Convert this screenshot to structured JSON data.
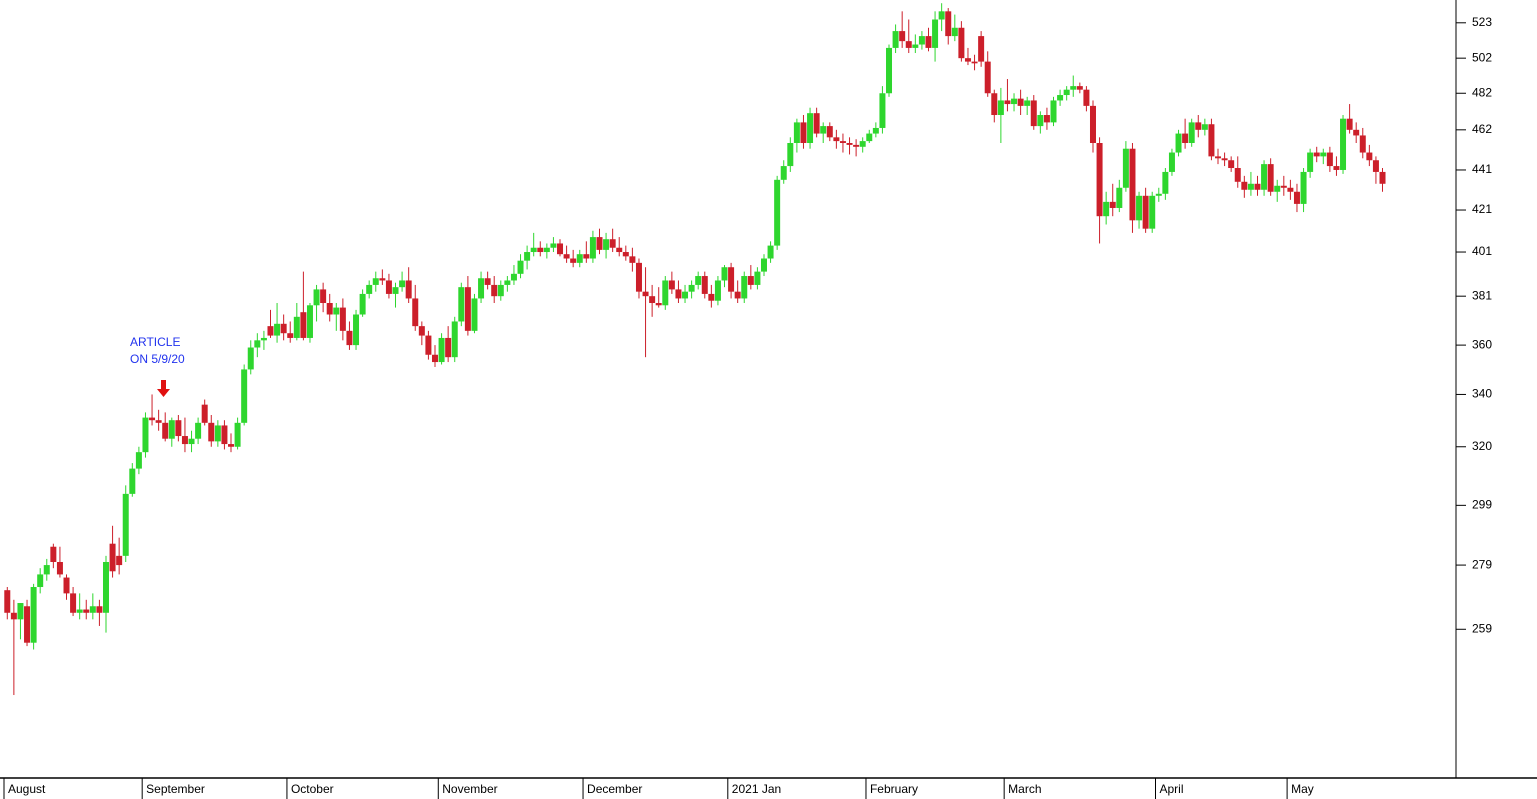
{
  "chart_data": {
    "type": "candlestick",
    "categories": [
      "August",
      null,
      null,
      null,
      null,
      null,
      null,
      null,
      null,
      null,
      null,
      null,
      null,
      null,
      null,
      null,
      null,
      null,
      null,
      null,
      null,
      "September",
      null,
      null,
      null,
      null,
      null,
      null,
      null,
      null,
      null,
      null,
      null,
      null,
      null,
      null,
      null,
      null,
      null,
      null,
      null,
      null,
      null,
      "October",
      null,
      null,
      null,
      null,
      null,
      null,
      null,
      null,
      null,
      null,
      null,
      null,
      null,
      null,
      null,
      null,
      null,
      null,
      null,
      null,
      null,
      null,
      "November",
      null,
      null,
      null,
      null,
      null,
      null,
      null,
      null,
      null,
      null,
      null,
      null,
      null,
      null,
      null,
      null,
      null,
      null,
      null,
      null,
      null,
      "December",
      null,
      null,
      null,
      null,
      null,
      null,
      null,
      null,
      null,
      null,
      null,
      null,
      null,
      null,
      null,
      null,
      null,
      null,
      null,
      null,
      null,
      "2021 Jan",
      null,
      null,
      null,
      null,
      null,
      null,
      null,
      null,
      null,
      null,
      null,
      null,
      null,
      null,
      null,
      null,
      null,
      null,
      null,
      null,
      "February",
      null,
      null,
      null,
      null,
      null,
      null,
      null,
      null,
      null,
      null,
      null,
      null,
      null,
      null,
      null,
      null,
      null,
      null,
      null,
      null,
      "March",
      null,
      null,
      null,
      null,
      null,
      null,
      null,
      null,
      null,
      null,
      null,
      null,
      null,
      null,
      null,
      null,
      null,
      null,
      null,
      null,
      null,
      null,
      "April",
      null,
      null,
      null,
      null,
      null,
      null,
      null,
      null,
      null,
      null,
      null,
      null,
      null,
      null,
      null,
      null,
      null,
      null,
      null,
      "May",
      null,
      null,
      null,
      null,
      null,
      null,
      null,
      null,
      null,
      null,
      null,
      null,
      null,
      null
    ],
    "ohlc": [
      [
        271,
        272,
        262,
        264
      ],
      [
        264,
        268,
        240,
        262
      ],
      [
        262,
        267,
        256,
        267
      ],
      [
        266,
        268,
        254,
        255
      ],
      [
        255,
        273,
        253,
        272
      ],
      [
        272,
        278,
        270,
        276
      ],
      [
        276,
        281,
        274,
        279
      ],
      [
        285,
        286,
        278,
        280
      ],
      [
        280,
        285,
        275,
        276
      ],
      [
        275,
        276,
        268,
        270
      ],
      [
        270,
        272,
        263,
        264
      ],
      [
        264,
        270,
        262,
        265
      ],
      [
        265,
        268,
        262,
        264
      ],
      [
        264,
        270,
        262,
        266
      ],
      [
        266,
        268,
        260,
        264
      ],
      [
        264,
        282,
        258,
        280
      ],
      [
        286,
        292,
        275,
        277
      ],
      [
        282,
        288,
        276,
        279
      ],
      [
        282,
        306,
        280,
        303
      ],
      [
        303,
        314,
        302,
        312
      ],
      [
        312,
        320,
        310,
        318
      ],
      [
        318,
        333,
        316,
        331
      ],
      [
        331,
        340,
        328,
        330
      ],
      [
        330,
        334,
        326,
        329
      ],
      [
        329,
        333,
        322,
        323
      ],
      [
        323,
        331,
        320,
        330
      ],
      [
        330,
        332,
        322,
        324
      ],
      [
        324,
        331,
        318,
        321
      ],
      [
        321,
        326,
        318,
        323
      ],
      [
        323,
        331,
        321,
        329
      ],
      [
        336,
        338,
        328,
        329
      ],
      [
        329,
        332,
        320,
        322
      ],
      [
        322,
        330,
        320,
        328
      ],
      [
        328,
        330,
        319,
        321
      ],
      [
        321,
        325,
        318,
        320
      ],
      [
        320,
        331,
        319,
        329
      ],
      [
        329,
        352,
        328,
        350
      ],
      [
        350,
        362,
        348,
        359
      ],
      [
        359,
        365,
        355,
        362
      ],
      [
        362,
        366,
        358,
        363
      ],
      [
        368,
        375,
        363,
        364
      ],
      [
        364,
        378,
        361,
        369
      ],
      [
        369,
        373,
        362,
        365
      ],
      [
        365,
        370,
        361,
        363
      ],
      [
        363,
        378,
        362,
        372
      ],
      [
        374,
        392,
        362,
        363
      ],
      [
        363,
        378,
        361,
        377
      ],
      [
        377,
        386,
        370,
        384
      ],
      [
        384,
        387,
        374,
        378
      ],
      [
        378,
        382,
        370,
        373
      ],
      [
        373,
        378,
        366,
        376
      ],
      [
        376,
        380,
        362,
        366
      ],
      [
        366,
        370,
        358,
        360
      ],
      [
        360,
        375,
        358,
        373
      ],
      [
        373,
        384,
        372,
        382
      ],
      [
        382,
        388,
        380,
        386
      ],
      [
        386,
        392,
        383,
        389
      ],
      [
        389,
        393,
        386,
        388
      ],
      [
        388,
        391,
        380,
        382
      ],
      [
        382,
        387,
        376,
        385
      ],
      [
        385,
        392,
        383,
        388
      ],
      [
        388,
        394,
        378,
        380
      ],
      [
        380,
        386,
        366,
        368
      ],
      [
        368,
        370,
        360,
        364
      ],
      [
        364,
        366,
        354,
        356
      ],
      [
        356,
        360,
        351,
        353
      ],
      [
        353,
        365,
        352,
        363
      ],
      [
        363,
        368,
        353,
        355
      ],
      [
        355,
        372,
        353,
        370
      ],
      [
        370,
        387,
        368,
        385
      ],
      [
        385,
        390,
        364,
        366
      ],
      [
        366,
        382,
        365,
        380
      ],
      [
        380,
        392,
        378,
        389
      ],
      [
        389,
        392,
        384,
        386
      ],
      [
        386,
        390,
        378,
        381
      ],
      [
        381,
        388,
        379,
        386
      ],
      [
        386,
        390,
        383,
        388
      ],
      [
        388,
        395,
        386,
        391
      ],
      [
        391,
        400,
        389,
        397
      ],
      [
        397,
        404,
        393,
        401
      ],
      [
        401,
        410,
        399,
        403
      ],
      [
        403,
        406,
        399,
        401
      ],
      [
        401,
        405,
        398,
        403
      ],
      [
        403,
        408,
        401,
        405
      ],
      [
        405,
        407,
        399,
        400
      ],
      [
        400,
        404,
        396,
        398
      ],
      [
        398,
        402,
        394,
        396
      ],
      [
        396,
        402,
        394,
        400
      ],
      [
        400,
        406,
        396,
        398
      ],
      [
        398,
        411,
        396,
        408
      ],
      [
        408,
        412,
        400,
        402
      ],
      [
        402,
        410,
        398,
        407
      ],
      [
        407,
        412,
        401,
        403
      ],
      [
        403,
        408,
        399,
        401
      ],
      [
        401,
        404,
        397,
        399
      ],
      [
        399,
        403,
        392,
        396
      ],
      [
        396,
        398,
        380,
        383
      ],
      [
        383,
        394,
        355,
        381
      ],
      [
        381,
        386,
        372,
        378
      ],
      [
        378,
        385,
        376,
        377
      ],
      [
        377,
        390,
        375,
        388
      ],
      [
        388,
        392,
        382,
        384
      ],
      [
        384,
        388,
        378,
        380
      ],
      [
        380,
        386,
        378,
        383
      ],
      [
        383,
        388,
        380,
        386
      ],
      [
        386,
        392,
        384,
        390
      ],
      [
        390,
        392,
        380,
        382
      ],
      [
        382,
        386,
        376,
        379
      ],
      [
        379,
        390,
        377,
        388
      ],
      [
        388,
        395,
        385,
        394
      ],
      [
        394,
        396,
        380,
        383
      ],
      [
        383,
        388,
        378,
        380
      ],
      [
        380,
        392,
        378,
        390
      ],
      [
        390,
        395,
        384,
        386
      ],
      [
        386,
        394,
        384,
        392
      ],
      [
        392,
        400,
        390,
        398
      ],
      [
        398,
        406,
        396,
        404
      ],
      [
        404,
        438,
        402,
        436
      ],
      [
        436,
        446,
        434,
        443
      ],
      [
        443,
        458,
        440,
        455
      ],
      [
        455,
        468,
        450,
        466
      ],
      [
        466,
        470,
        452,
        455
      ],
      [
        455,
        474,
        452,
        471
      ],
      [
        471,
        474,
        458,
        460
      ],
      [
        460,
        466,
        455,
        464
      ],
      [
        464,
        466,
        456,
        458
      ],
      [
        458,
        462,
        452,
        456
      ],
      [
        456,
        460,
        450,
        455
      ],
      [
        455,
        458,
        449,
        454
      ],
      [
        454,
        457,
        448,
        453
      ],
      [
        453,
        458,
        450,
        456
      ],
      [
        456,
        462,
        455,
        460
      ],
      [
        460,
        466,
        458,
        463
      ],
      [
        463,
        486,
        460,
        482
      ],
      [
        482,
        510,
        480,
        508
      ],
      [
        508,
        522,
        505,
        518
      ],
      [
        518,
        530,
        508,
        512
      ],
      [
        512,
        525,
        505,
        508
      ],
      [
        508,
        516,
        505,
        510
      ],
      [
        510,
        518,
        507,
        515
      ],
      [
        515,
        520,
        506,
        508
      ],
      [
        508,
        530,
        500,
        525
      ],
      [
        525,
        535,
        518,
        530
      ],
      [
        530,
        532,
        510,
        515
      ],
      [
        515,
        528,
        512,
        520
      ],
      [
        520,
        524,
        500,
        502
      ],
      [
        502,
        508,
        498,
        500
      ],
      [
        500,
        504,
        495,
        499
      ],
      [
        515,
        518,
        497,
        500
      ],
      [
        500,
        506,
        480,
        482
      ],
      [
        482,
        484,
        466,
        470
      ],
      [
        470,
        485,
        455,
        478
      ],
      [
        478,
        490,
        472,
        476
      ],
      [
        476,
        482,
        472,
        479
      ],
      [
        479,
        484,
        470,
        475
      ],
      [
        475,
        480,
        470,
        478
      ],
      [
        478,
        481,
        462,
        464
      ],
      [
        464,
        472,
        460,
        470
      ],
      [
        470,
        474,
        462,
        466
      ],
      [
        466,
        480,
        464,
        478
      ],
      [
        478,
        484,
        475,
        481
      ],
      [
        481,
        486,
        478,
        484
      ],
      [
        484,
        492,
        480,
        486
      ],
      [
        486,
        488,
        482,
        484
      ],
      [
        484,
        486,
        472,
        475
      ],
      [
        475,
        478,
        450,
        455
      ],
      [
        455,
        458,
        405,
        418
      ],
      [
        418,
        430,
        414,
        425
      ],
      [
        425,
        434,
        418,
        422
      ],
      [
        422,
        436,
        420,
        432
      ],
      [
        432,
        456,
        430,
        452
      ],
      [
        452,
        455,
        410,
        416
      ],
      [
        416,
        430,
        412,
        428
      ],
      [
        428,
        432,
        410,
        412
      ],
      [
        412,
        430,
        410,
        428
      ],
      [
        428,
        432,
        425,
        429
      ],
      [
        429,
        442,
        426,
        440
      ],
      [
        440,
        452,
        438,
        450
      ],
      [
        450,
        462,
        448,
        460
      ],
      [
        460,
        468,
        452,
        455
      ],
      [
        455,
        468,
        453,
        466
      ],
      [
        466,
        470,
        458,
        462
      ],
      [
        462,
        468,
        459,
        465
      ],
      [
        465,
        468,
        446,
        448
      ],
      [
        448,
        452,
        444,
        447
      ],
      [
        447,
        450,
        443,
        446
      ],
      [
        446,
        448,
        440,
        442
      ],
      [
        442,
        448,
        432,
        435
      ],
      [
        435,
        438,
        427,
        431
      ],
      [
        431,
        440,
        428,
        434
      ],
      [
        434,
        438,
        428,
        431
      ],
      [
        431,
        446,
        428,
        444
      ],
      [
        444,
        447,
        428,
        430
      ],
      [
        430,
        436,
        425,
        433
      ],
      [
        433,
        438,
        428,
        432
      ],
      [
        432,
        436,
        426,
        430
      ],
      [
        430,
        434,
        420,
        424
      ],
      [
        424,
        442,
        420,
        440
      ],
      [
        440,
        452,
        437,
        450
      ],
      [
        450,
        453,
        445,
        448
      ],
      [
        448,
        452,
        444,
        450
      ],
      [
        450,
        453,
        440,
        443
      ],
      [
        443,
        448,
        438,
        441
      ],
      [
        441,
        470,
        439,
        468
      ],
      [
        468,
        476,
        460,
        462
      ],
      [
        462,
        466,
        455,
        459
      ],
      [
        459,
        463,
        447,
        450
      ],
      [
        450,
        454,
        443,
        446
      ],
      [
        446,
        448,
        434,
        440
      ],
      [
        440,
        442,
        430,
        434
      ]
    ],
    "up_color": "#2ed62e",
    "down_color": "#cc1f2a",
    "ylim": [
      218,
      537
    ],
    "log_scale": true,
    "yticks": [
      259,
      279,
      299,
      320,
      340,
      360,
      381,
      401,
      421,
      441,
      462,
      482,
      502,
      523
    ],
    "annotation": [
      "ARTICLE",
      "ON 5/9/20"
    ]
  }
}
